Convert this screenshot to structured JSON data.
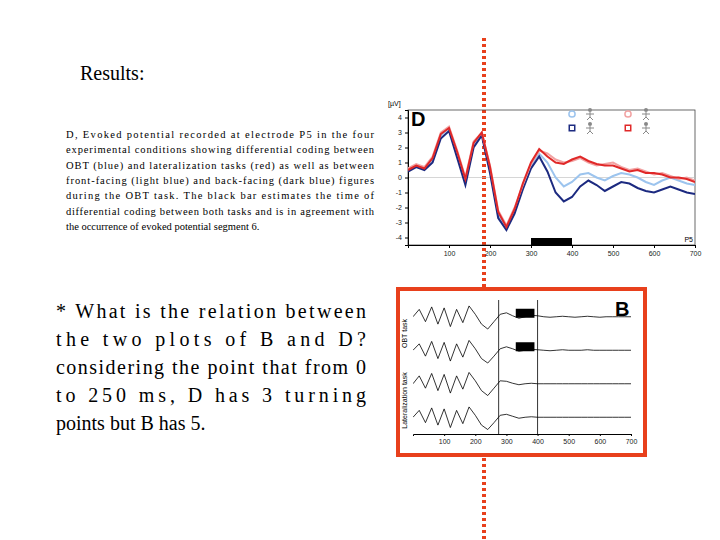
{
  "slide": {
    "heading": "Results:",
    "caption_lines": [
      "D, Evoked potential recorded at electrode P5 in the four",
      "experimental conditions showing differential coding between",
      "OBT (blue) and lateralization tasks (red) as well as between",
      "front-facing (light blue) and back-facing (dark blue) figures",
      "during the OBT task. The black bar estimates the time of",
      "differential coding between both tasks and is in agreement with",
      "the occurrence of evoked potential segment 6."
    ],
    "question_lines": [
      "* What is the relation between",
      "the two plots of B and D?",
      "considering the point that from 0",
      "to 250 ms, D has 3 turning",
      "points but B has 5."
    ]
  },
  "chart_data": [
    {
      "type": "line",
      "panel_label": "D",
      "y_label": "[µV]",
      "electrode_label": "P5",
      "x": [
        0,
        20,
        40,
        60,
        80,
        100,
        120,
        140,
        160,
        180,
        200,
        220,
        240,
        260,
        280,
        300,
        320,
        340,
        360,
        380,
        400,
        420,
        440,
        460,
        480,
        500,
        520,
        540,
        560,
        580,
        600,
        620,
        640,
        660,
        680,
        700
      ],
      "xlim": [
        0,
        700
      ],
      "xticks": [
        100,
        200,
        300,
        400,
        500,
        600,
        700
      ],
      "ylim": [
        -4.5,
        4.5
      ],
      "yticks": [
        -4,
        -3,
        -2,
        -1,
        0,
        1,
        2,
        3,
        4
      ],
      "legend": "top-right",
      "series": [
        {
          "color": "#9cc4ee",
          "marker": "circle",
          "values": [
            0.5,
            0.8,
            0.6,
            1.2,
            2.8,
            3.3,
            1.5,
            -0.3,
            2.2,
            2.9,
            0.5,
            -2.5,
            -3.4,
            -2.2,
            -0.6,
            0.8,
            1.6,
            1.0,
            0.0,
            -0.6,
            -0.3,
            0.2,
            0.3,
            0.0,
            -0.2,
            0.1,
            0.3,
            0.2,
            0.0,
            -0.3,
            -0.5,
            -0.2,
            0.0,
            -0.2,
            -0.4,
            -0.5
          ]
        },
        {
          "color": "#1c2a80",
          "marker": "square",
          "values": [
            0.4,
            0.7,
            0.5,
            1.0,
            2.6,
            3.1,
            1.3,
            -0.5,
            2.0,
            2.8,
            0.3,
            -2.7,
            -3.5,
            -2.4,
            -0.8,
            0.6,
            1.4,
            0.4,
            -1.0,
            -1.6,
            -1.3,
            -0.6,
            -0.2,
            -0.5,
            -0.9,
            -0.6,
            -0.3,
            -0.4,
            -0.7,
            -0.9,
            -1.0,
            -0.8,
            -0.6,
            -0.8,
            -1.0,
            -1.1
          ]
        },
        {
          "color": "#f2a3a3",
          "marker": "circle",
          "values": [
            0.6,
            0.9,
            0.7,
            1.4,
            3.0,
            3.4,
            1.8,
            0.0,
            2.4,
            3.0,
            0.8,
            -2.2,
            -3.2,
            -2.0,
            -0.5,
            0.9,
            1.8,
            1.6,
            1.2,
            1.0,
            1.1,
            1.3,
            1.0,
            0.8,
            0.9,
            1.0,
            0.7,
            0.5,
            0.6,
            0.4,
            0.2,
            0.3,
            0.1,
            -0.1,
            0.0,
            -0.2
          ]
        },
        {
          "color": "#e02828",
          "marker": "square",
          "values": [
            0.5,
            0.8,
            0.6,
            1.3,
            2.9,
            3.3,
            1.7,
            -0.1,
            2.3,
            3.0,
            0.7,
            -2.3,
            -3.3,
            -2.1,
            -0.4,
            1.0,
            1.9,
            1.4,
            1.0,
            0.9,
            1.2,
            1.4,
            1.1,
            0.9,
            0.8,
            0.8,
            0.6,
            0.4,
            0.5,
            0.3,
            0.3,
            0.2,
            0.0,
            0.0,
            -0.1,
            -0.3
          ]
        }
      ],
      "annotation_bar": [
        300,
        400
      ]
    },
    {
      "type": "line",
      "panel_label": "B",
      "group_labels": [
        "OBT task",
        "Lateralization task"
      ],
      "x": [
        0,
        20,
        40,
        60,
        80,
        100,
        120,
        140,
        160,
        180,
        200,
        220,
        240,
        260,
        280,
        300,
        320,
        340,
        360,
        380,
        400,
        420,
        440,
        460,
        480,
        500,
        520,
        540,
        560,
        580,
        600,
        620,
        640,
        660,
        680,
        700
      ],
      "xlim": [
        0,
        700
      ],
      "xticks": [
        100,
        200,
        300,
        400,
        500,
        600,
        700
      ],
      "ylim": [
        -3,
        3
      ],
      "tick_labels": "x",
      "series": [
        {
          "color": "#000000",
          "values": [
            0,
            1.5,
            -1.0,
            2.0,
            -1.5,
            1.8,
            -2.0,
            1.5,
            -1.2,
            2.2,
            0.5,
            -1.5,
            -2.5,
            -1.0,
            0.5,
            0.8,
            0.2,
            -0.3,
            0,
            0.3,
            0.2,
            0,
            -0.1,
            0,
            0.1,
            0,
            -0.1,
            0,
            0.1,
            0,
            -0.1,
            0,
            0,
            0,
            0,
            0
          ]
        },
        {
          "color": "#000000",
          "values": [
            0,
            1.3,
            -1.2,
            1.8,
            -1.7,
            1.6,
            -2.2,
            1.3,
            -1.4,
            2.0,
            0.3,
            -1.7,
            -2.6,
            -1.2,
            0.3,
            0.7,
            0.3,
            -0.2,
            0,
            0.2,
            0.1,
            0,
            -0.1,
            0,
            0.1,
            0,
            0,
            0,
            0.1,
            0,
            0,
            0,
            0,
            0,
            0,
            0
          ]
        },
        {
          "color": "#000000",
          "values": [
            0,
            1.6,
            -0.9,
            2.1,
            -1.4,
            1.9,
            -1.9,
            1.6,
            -1.1,
            2.3,
            0.6,
            -1.4,
            -2.4,
            -0.9,
            0.6,
            0.5,
            0.1,
            -0.2,
            0,
            0.1,
            0,
            0,
            0,
            0,
            0,
            0,
            0,
            0,
            0,
            0,
            0,
            0,
            0,
            0,
            0,
            0
          ]
        },
        {
          "color": "#000000",
          "values": [
            0,
            1.4,
            -1.1,
            1.9,
            -1.6,
            1.7,
            -2.1,
            1.4,
            -1.3,
            2.1,
            0.4,
            -1.6,
            -2.5,
            -1.1,
            0.4,
            0.6,
            0.2,
            -0.2,
            0,
            0.1,
            0,
            0,
            0,
            0,
            0,
            0,
            0,
            0,
            0,
            0,
            0,
            0,
            0,
            0,
            0,
            0
          ]
        }
      ],
      "segment_bounds": [
        275,
        400
      ],
      "filled_segment": [
        330,
        390
      ]
    }
  ]
}
